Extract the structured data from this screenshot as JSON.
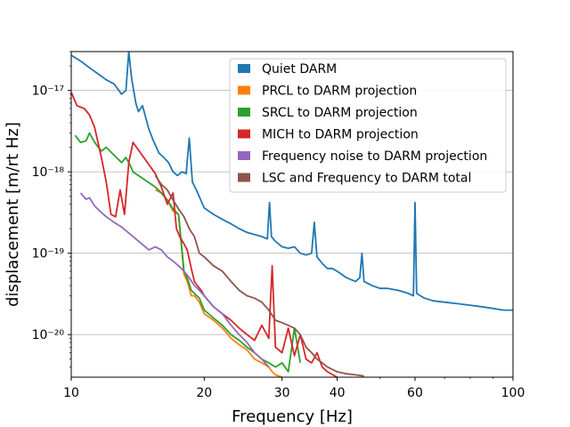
{
  "chart_data": {
    "type": "line",
    "xlabel": "Frequency [Hz]",
    "ylabel": "displacement [m/rt Hz]",
    "xscale": "log",
    "yscale": "log",
    "xlim": [
      10,
      100
    ],
    "ylim": [
      3e-21,
      3e-17
    ],
    "grid": true,
    "legend_position": "top-right",
    "x_ticks": [
      {
        "value": 10,
        "label": "10"
      },
      {
        "value": 20,
        "label": "20"
      },
      {
        "value": 30,
        "label": "30"
      },
      {
        "value": 40,
        "label": "40"
      },
      {
        "value": 60,
        "label": "60"
      },
      {
        "value": 100,
        "label": "100"
      }
    ],
    "y_ticks": [
      {
        "value": 1e-20,
        "label": "10⁻²⁰"
      },
      {
        "value": 1e-19,
        "label": "10⁻¹⁹"
      },
      {
        "value": 1e-18,
        "label": "10⁻¹⁸"
      },
      {
        "value": 1e-17,
        "label": "10⁻¹⁷"
      }
    ],
    "series": [
      {
        "name": "Quiet DARM",
        "color": "#1f77b4",
        "x": [
          10,
          10.5,
          11,
          11.5,
          12,
          12.5,
          13,
          13.3,
          13.5,
          13.7,
          14,
          14.2,
          14.5,
          15,
          15.3,
          15.8,
          16.2,
          16.6,
          17,
          17.4,
          17.8,
          18.2,
          18.5,
          18.8,
          19.2,
          20,
          21,
          22,
          23,
          24,
          25,
          26,
          27,
          27.8,
          28.1,
          28.4,
          29,
          30,
          31,
          32,
          33,
          34,
          35,
          35.5,
          36,
          37,
          38,
          39,
          40,
          42,
          44,
          45,
          45.5,
          46,
          48,
          50,
          52,
          55,
          58,
          59.5,
          60,
          60.5,
          63,
          66,
          70,
          75,
          80,
          85,
          90,
          95,
          100
        ],
        "y": [
          2.7e-17,
          2.3e-17,
          1.9e-17,
          1.6e-17,
          1.35e-17,
          1.2e-17,
          9e-18,
          1e-17,
          3e-17,
          1.4e-17,
          7e-18,
          5.5e-18,
          6.5e-18,
          3.3e-18,
          2.5e-18,
          1.7e-18,
          1.5e-18,
          1.3e-18,
          1e-18,
          9e-19,
          1e-18,
          9.5e-19,
          2.6e-18,
          7.5e-19,
          6e-19,
          3.6e-19,
          3e-19,
          2.6e-19,
          2.3e-19,
          2e-19,
          1.8e-19,
          1.7e-19,
          1.6e-19,
          1.5e-19,
          4.2e-19,
          1.6e-19,
          1.4e-19,
          1.2e-19,
          1.15e-19,
          1.2e-19,
          1e-19,
          9.5e-20,
          1e-19,
          2.4e-19,
          9e-20,
          7.5e-20,
          6.5e-20,
          6.5e-20,
          6e-20,
          5e-20,
          4.5e-20,
          5e-20,
          1e-19,
          4.5e-20,
          4e-20,
          3.7e-20,
          3.7e-20,
          3.5e-20,
          3.2e-20,
          3e-20,
          4.2e-19,
          3.2e-20,
          2.8e-20,
          2.6e-20,
          2.5e-20,
          2.4e-20,
          2.3e-20,
          2.2e-20,
          2.1e-20,
          2e-20,
          2e-20
        ]
      },
      {
        "name": "PRCL to DARM projection",
        "color": "#ff7f0e",
        "x": [
          15.5,
          16,
          16.5,
          17,
          17.5,
          18,
          18.3,
          18.7,
          19,
          19.5,
          20,
          21,
          22,
          23,
          24,
          25,
          26,
          27,
          28,
          28.5,
          29,
          30
        ],
        "y": [
          6e-19,
          5.5e-19,
          4.5e-19,
          3.3e-19,
          3e-19,
          5.5e-20,
          4.5e-20,
          3e-20,
          3e-20,
          2.5e-20,
          1.8e-20,
          1.5e-20,
          1.2e-20,
          9e-21,
          7.5e-21,
          6.5e-21,
          5e-21,
          4.5e-21,
          4e-21,
          3.5e-21,
          3.2e-21,
          3e-21
        ]
      },
      {
        "name": "SRCL to DARM projection",
        "color": "#2ca02c",
        "x": [
          10.2,
          10.5,
          10.8,
          11,
          11.3,
          11.7,
          12,
          12.5,
          13,
          13.3,
          13.6,
          13.8,
          15.5,
          16,
          16.5,
          17,
          17.5,
          18,
          18.3,
          18.7,
          19,
          19.5,
          20,
          21,
          22,
          23,
          24,
          25,
          26,
          27,
          28,
          29,
          30,
          31,
          32,
          33
        ],
        "y": [
          2.8e-18,
          2.3e-18,
          2.4e-18,
          3e-18,
          2.3e-18,
          1.8e-18,
          2e-18,
          1.6e-18,
          1.3e-18,
          1.5e-18,
          1.2e-18,
          1e-18,
          6.5e-19,
          5.5e-19,
          4.5e-19,
          3.5e-19,
          3e-19,
          6e-20,
          5e-20,
          3.5e-20,
          3.2e-20,
          2.8e-20,
          2e-20,
          1.6e-20,
          1.3e-20,
          1e-20,
          8.5e-21,
          7e-21,
          6e-21,
          5e-21,
          4.5e-21,
          4e-21,
          4.5e-21,
          3.5e-21,
          1.2e-20,
          4.5e-21
        ]
      },
      {
        "name": "MICH to DARM projection",
        "color": "#d62728",
        "x": [
          10,
          10.3,
          10.7,
          11,
          11.3,
          11.7,
          12,
          12.3,
          12.6,
          12.9,
          13.2,
          13.5,
          13.8,
          15.5,
          16,
          16.5,
          17,
          17.3,
          17.6,
          18,
          18.3,
          18.7,
          19,
          19.3,
          19.7,
          20,
          21,
          22,
          23,
          24,
          25,
          26,
          27,
          28,
          28.5,
          29,
          30,
          31,
          32,
          33,
          34,
          35,
          36,
          37,
          38,
          40
        ],
        "y": [
          9.5e-18,
          6.5e-18,
          6e-18,
          5e-18,
          3.5e-18,
          1.5e-18,
          7.5e-19,
          3e-19,
          2.8e-19,
          6e-19,
          3e-19,
          1.3e-18,
          2.3e-18,
          9.5e-19,
          6.5e-19,
          4e-19,
          5.5e-19,
          2e-19,
          1.6e-19,
          1.3e-19,
          1.1e-19,
          6.5e-20,
          4.5e-20,
          4e-20,
          3.5e-20,
          3e-20,
          2.2e-20,
          1.8e-20,
          1.5e-20,
          1.2e-20,
          1e-20,
          8.5e-21,
          1.3e-20,
          9e-21,
          7e-20,
          7e-21,
          6e-21,
          1.2e-20,
          5.5e-21,
          1e-20,
          5e-21,
          4.5e-21,
          6e-21,
          4e-21,
          3.5e-21,
          3e-21
        ]
      },
      {
        "name": "Frequency noise to DARM projection",
        "color": "#9467bd",
        "x": [
          10.5,
          10.8,
          11,
          11.3,
          11.6,
          12,
          12.5,
          13,
          15,
          15.5,
          16,
          16.5,
          17,
          17.5,
          18,
          18.5,
          19,
          19.5,
          20,
          21,
          22,
          23,
          24,
          25,
          26,
          27,
          28
        ],
        "y": [
          5.5e-19,
          4.6e-19,
          4.8e-19,
          3.8e-19,
          3.3e-19,
          2.8e-19,
          2.4e-19,
          2.1e-19,
          1.1e-19,
          1.2e-19,
          1.1e-19,
          9e-20,
          8e-20,
          7e-20,
          6e-20,
          5e-20,
          4e-20,
          3.5e-20,
          3e-20,
          2.2e-20,
          1.8e-20,
          1.3e-20,
          1e-20,
          8e-21,
          6e-21,
          5e-21,
          4e-21
        ]
      },
      {
        "name": "LSC and Frequency to DARM total",
        "color": "#8c564b",
        "x": [
          15.5,
          16,
          16.5,
          17,
          17.5,
          18,
          18.5,
          19,
          19.5,
          20,
          21,
          22,
          23,
          24,
          25,
          26,
          27,
          28,
          29,
          30,
          31,
          32,
          33,
          34,
          35,
          36,
          37,
          38,
          40,
          42,
          44,
          46
        ],
        "y": [
          9e-19,
          7e-19,
          6e-19,
          4.5e-19,
          3.5e-19,
          2.8e-19,
          2e-19,
          1.6e-19,
          1e-19,
          9e-20,
          7e-20,
          6e-20,
          4.5e-20,
          3.5e-20,
          3e-20,
          2.8e-20,
          2.5e-20,
          2e-20,
          1.5e-20,
          1.4e-20,
          1.3e-20,
          1.2e-20,
          1e-20,
          7e-21,
          6e-21,
          5e-21,
          4.5e-21,
          4e-21,
          3.5e-21,
          3.3e-21,
          3.2e-21,
          3.1e-21
        ]
      }
    ]
  }
}
